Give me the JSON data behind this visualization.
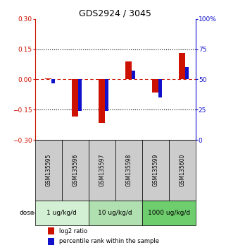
{
  "title": "GDS2924 / 3045",
  "samples": [
    "GSM135595",
    "GSM135596",
    "GSM135597",
    "GSM135598",
    "GSM135599",
    "GSM135600"
  ],
  "log2_ratio": [
    0.005,
    -0.185,
    -0.215,
    0.09,
    -0.065,
    0.13
  ],
  "percentile_rank": [
    47,
    24,
    24,
    57,
    35,
    60
  ],
  "dose_groups": [
    {
      "label": "1 ug/kg/d",
      "start": 0,
      "end": 1,
      "color": "#d4f0d4"
    },
    {
      "label": "10 ug/kg/d",
      "start": 2,
      "end": 3,
      "color": "#b0e0b0"
    },
    {
      "label": "1000 ug/kg/d",
      "start": 4,
      "end": 5,
      "color": "#6ece6e"
    }
  ],
  "red_color": "#cc1100",
  "blue_color": "#1111cc",
  "gray_color": "#cccccc",
  "ylim_left": [
    -0.3,
    0.3
  ],
  "ylim_right": [
    0,
    100
  ],
  "yticks_left": [
    -0.3,
    -0.15,
    0,
    0.15,
    0.3
  ],
  "yticks_right": [
    0,
    25,
    50,
    75,
    100
  ],
  "ytick_labels_right": [
    "0",
    "25",
    "50",
    "75",
    "100%"
  ],
  "red_bar_width": 0.25,
  "blue_bar_width": 0.12
}
